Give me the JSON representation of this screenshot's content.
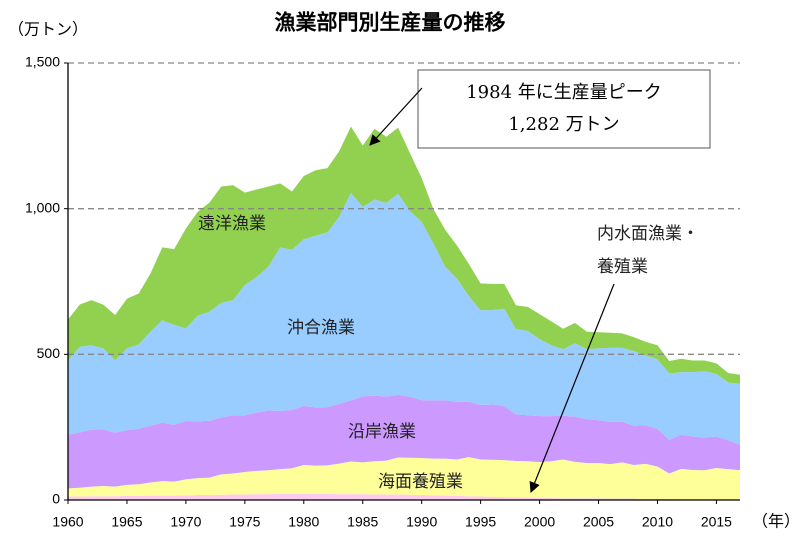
{
  "chart_data": {
    "type": "stacked_area",
    "title": "漁業部門別生産量の推移",
    "y_label": "（万トン）",
    "x_label": "（年）",
    "annotation": [
      "1984 年に生産量ピーク",
      "1,282 万トン"
    ],
    "x": [
      1960,
      1961,
      1962,
      1963,
      1964,
      1965,
      1966,
      1967,
      1968,
      1969,
      1970,
      1971,
      1972,
      1973,
      1974,
      1975,
      1976,
      1977,
      1978,
      1979,
      1980,
      1981,
      1982,
      1983,
      1984,
      1985,
      1986,
      1987,
      1988,
      1989,
      1990,
      1991,
      1992,
      1993,
      1994,
      1995,
      1996,
      1997,
      1998,
      1999,
      2000,
      2001,
      2002,
      2003,
      2004,
      2005,
      2006,
      2007,
      2008,
      2009,
      2010,
      2011,
      2012,
      2013,
      2014,
      2015,
      2016,
      2017
    ],
    "xlim": [
      1960,
      2017
    ],
    "xticks": [
      1960,
      1965,
      1970,
      1975,
      1980,
      1985,
      1990,
      1995,
      2000,
      2005,
      2010,
      2015
    ],
    "ylim": [
      0,
      1500
    ],
    "yticks": [
      0,
      500,
      {
        "value": 1000,
        "label": "1,000"
      },
      {
        "value": 1500,
        "label": "1,500"
      }
    ],
    "grid": true,
    "series": [
      {
        "name": "内水面漁業・養殖業",
        "color": "#ffccee",
        "values": [
          12,
          12,
          13,
          13,
          13,
          14,
          14,
          15,
          15,
          15,
          16,
          17,
          17,
          18,
          19,
          19,
          20,
          20,
          21,
          21,
          21,
          21,
          21,
          20,
          20,
          20,
          19,
          19,
          19,
          18,
          17,
          16,
          15,
          14,
          13,
          12,
          11,
          10,
          9,
          8,
          7,
          7,
          6,
          6,
          6,
          6,
          5,
          5,
          5,
          4,
          4,
          4,
          3,
          3,
          3,
          3,
          3,
          3
        ]
      },
      {
        "name": "海面養殖業",
        "color": "#ffff99",
        "values": [
          28,
          30,
          33,
          35,
          33,
          38,
          40,
          45,
          50,
          48,
          55,
          58,
          60,
          70,
          72,
          77,
          80,
          82,
          85,
          88,
          99,
          97,
          98,
          105,
          112,
          109,
          114,
          116,
          127,
          127,
          127,
          126,
          127,
          125,
          134,
          127,
          127,
          127,
          125,
          125,
          123,
          126,
          133,
          125,
          121,
          121,
          118,
          124,
          115,
          120,
          111,
          87,
          104,
          100,
          99,
          107,
          103,
          99
        ]
      },
      {
        "name": "沿岸漁業",
        "color": "#cc99ff",
        "values": [
          185,
          190,
          195,
          195,
          185,
          188,
          190,
          195,
          200,
          195,
          200,
          195,
          195,
          195,
          200,
          195,
          200,
          205,
          200,
          200,
          203,
          200,
          200,
          205,
          210,
          227,
          225,
          220,
          215,
          210,
          199,
          200,
          200,
          198,
          190,
          187,
          190,
          185,
          160,
          158,
          158,
          155,
          150,
          155,
          150,
          147,
          145,
          140,
          135,
          132,
          129,
          115,
          117,
          115,
          112,
          108,
          99,
          88
        ]
      },
      {
        "name": "沖合漁業",
        "color": "#99ccff",
        "values": [
          254,
          294,
          290,
          277,
          249,
          281,
          290,
          323,
          352,
          343,
          318,
          363,
          374,
          394,
          395,
          447,
          466,
          494,
          561,
          550,
          572,
          589,
          600,
          642,
          712,
          650,
          673,
          665,
          690,
          637,
          612,
          538,
          458,
          422,
          363,
          325,
          324,
          334,
          293,
          289,
          264,
          243,
          229,
          252,
          241,
          247,
          254,
          253,
          256,
          240,
          239,
          228,
          215,
          221,
          228,
          215,
          198,
          209
        ]
      },
      {
        "name": "遠洋漁業",
        "color": "#92d050",
        "values": [
          140,
          145,
          155,
          150,
          155,
          170,
          175,
          200,
          250,
          260,
          343,
          356,
          375,
          399,
          395,
          317,
          300,
          275,
          220,
          200,
          217,
          225,
          220,
          225,
          228,
          211,
          243,
          227,
          227,
          199,
          150,
          118,
          127,
          114,
          110,
          92,
          90,
          86,
          81,
          83,
          86,
          82,
          70,
          70,
          60,
          55,
          52,
          50,
          48,
          47,
          48,
          43,
          46,
          40,
          37,
          36,
          33,
          31
        ]
      }
    ]
  }
}
